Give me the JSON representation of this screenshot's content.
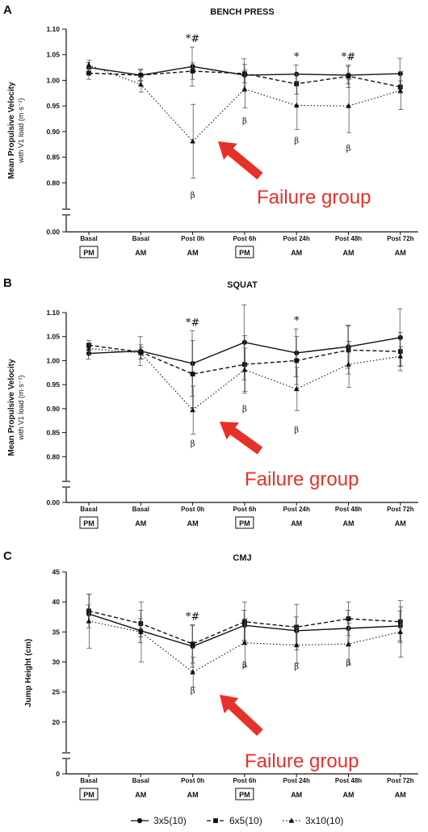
{
  "legend": [
    {
      "label": "3x5(10)",
      "marker": "circle",
      "dash": "solid"
    },
    {
      "label": "6x5(10)",
      "marker": "square",
      "dash": "dashed"
    },
    {
      "label": "3x10(10)",
      "marker": "triangle",
      "dash": "dotted"
    }
  ],
  "colors": {
    "arrow": "#e8302a",
    "line": "#111111"
  },
  "chart_data": [
    {
      "panel": "A",
      "type": "line",
      "title": "BENCH PRESS",
      "ylabel": "Mean Propulsive Velocity",
      "ylabel2": "with V1 load (m·s⁻¹)",
      "ylim": [
        0.75,
        1.1
      ],
      "yticks": [
        "0.00",
        "0.80",
        "0.85",
        "0.90",
        "0.95",
        "1.00",
        "1.05",
        "1.10"
      ],
      "y_break": true,
      "categories": [
        "Basal",
        "Basal",
        "Post 0h",
        "Post 6h",
        "Post 24h",
        "Post 48h",
        "Post 72h"
      ],
      "sessions": [
        "PM",
        "AM",
        "AM",
        "PM",
        "AM",
        "AM",
        "AM"
      ],
      "boxed_sessions": [
        0,
        3
      ],
      "series": [
        {
          "name": "3x5(10)",
          "values": [
            1.025,
            1.01,
            1.027,
            1.01,
            1.012,
            1.01,
            1.013
          ],
          "err": [
            0.01,
            0.01,
            0.038,
            0.032,
            0.018,
            0.017,
            0.03
          ]
        },
        {
          "name": "6x5(10)",
          "values": [
            1.014,
            1.01,
            1.018,
            1.013,
            0.993,
            1.008,
            0.987
          ],
          "err": [
            0.012,
            0.012,
            0.016,
            0.018,
            0.02,
            0.022,
            0.012
          ]
        },
        {
          "name": "3x10(10)",
          "values": [
            1.03,
            0.992,
            0.881,
            0.983,
            0.951,
            0.95,
            0.98
          ],
          "err": [
            0.009,
            0.015,
            0.072,
            0.037,
            0.047,
            0.052,
            0.037
          ]
        }
      ],
      "annotations": [
        {
          "index": 2,
          "text": "*#"
        },
        {
          "index": 4,
          "text": "*"
        },
        {
          "index": 5,
          "text": "*#"
        }
      ],
      "betas": [
        {
          "index": 2,
          "value": 0.777
        },
        {
          "index": 3,
          "value": 0.922
        },
        {
          "index": 4,
          "value": 0.883
        },
        {
          "index": 5,
          "value": 0.868
        }
      ],
      "failure_label": "Failure group"
    },
    {
      "panel": "B",
      "type": "line",
      "title": "SQUAT",
      "ylabel": "Mean Propulsive Velocity",
      "ylabel2": "with V1 load (m·s⁻¹)",
      "ylim": [
        0.75,
        1.1
      ],
      "yticks": [
        "0.00",
        "0.80",
        "0.85",
        "0.90",
        "0.95",
        "1.00",
        "1.05",
        "1.10"
      ],
      "y_break": true,
      "categories": [
        "Basal",
        "Basal",
        "Post 0h",
        "Post 6h",
        "Post 24h",
        "Post 48h",
        "Post 72h"
      ],
      "sessions": [
        "PM",
        "AM",
        "AM",
        "PM",
        "AM",
        "AM",
        "AM"
      ],
      "boxed_sessions": [
        0,
        3
      ],
      "series": [
        {
          "name": "3x5(10)",
          "values": [
            1.015,
            1.02,
            0.994,
            1.038,
            1.016,
            1.029,
            1.048
          ],
          "err": [
            0.012,
            0.03,
            0.068,
            0.078,
            0.05,
            0.045,
            0.06
          ]
        },
        {
          "name": "6x5(10)",
          "values": [
            1.032,
            1.018,
            0.972,
            0.992,
            1.0,
            1.022,
            1.019
          ],
          "err": [
            0.01,
            0.015,
            0.07,
            0.06,
            0.05,
            0.05,
            0.04
          ]
        },
        {
          "name": "3x10(10)",
          "values": [
            1.025,
            1.016,
            0.897,
            0.981,
            0.941,
            0.992,
            1.009
          ],
          "err": [
            0.012,
            0.012,
            0.05,
            0.045,
            0.045,
            0.048,
            0.02
          ]
        }
      ],
      "annotations": [
        {
          "index": 2,
          "text": "*#"
        },
        {
          "index": 4,
          "text": "*"
        }
      ],
      "betas": [
        {
          "index": 2,
          "value": 0.828
        },
        {
          "index": 3,
          "value": 0.901
        },
        {
          "index": 4,
          "value": 0.857
        }
      ],
      "failure_label": "Failure group"
    },
    {
      "panel": "C",
      "type": "line",
      "title": "CMJ",
      "ylabel": "Jump Height (cm)",
      "ylabel2": "",
      "ylim": [
        15,
        45
      ],
      "yticks": [
        "0",
        "20",
        "25",
        "30",
        "35",
        "40",
        "45"
      ],
      "y_break": true,
      "categories": [
        "Basal",
        "Basal",
        "Post 0h",
        "Post 6h",
        "Post 24h",
        "Post 48h",
        "Post 72h"
      ],
      "sessions": [
        "PM",
        "AM",
        "AM",
        "PM",
        "AM",
        "AM",
        "AM"
      ],
      "boxed_sessions": [
        0,
        3
      ],
      "series": [
        {
          "name": "3x5(10)",
          "values": [
            38.0,
            35.2,
            32.6,
            36.1,
            35.2,
            35.6,
            36.0
          ],
          "err": [
            1.5,
            2.0,
            3.5,
            2.5,
            2.3,
            3.0,
            2.5
          ]
        },
        {
          "name": "6x5(10)",
          "values": [
            38.5,
            36.4,
            33.0,
            36.7,
            35.8,
            37.2,
            36.7
          ],
          "err": [
            2.8,
            2.2,
            3.2,
            3.3,
            3.8,
            2.8,
            3.5
          ]
        },
        {
          "name": "3x10(10)",
          "values": [
            36.8,
            35.0,
            28.3,
            33.2,
            32.8,
            33.0,
            35.0
          ],
          "err": [
            4.5,
            5.0,
            2.5,
            4.0,
            3.0,
            3.5,
            4.2
          ]
        }
      ],
      "annotations": [
        {
          "index": 2,
          "text": "*#"
        }
      ],
      "betas": [
        {
          "index": 2,
          "value": 25.3
        },
        {
          "index": 3,
          "value": 29.6
        },
        {
          "index": 4,
          "value": 29.3
        },
        {
          "index": 5,
          "value": 30.0
        }
      ],
      "failure_label": "Failure group"
    }
  ]
}
